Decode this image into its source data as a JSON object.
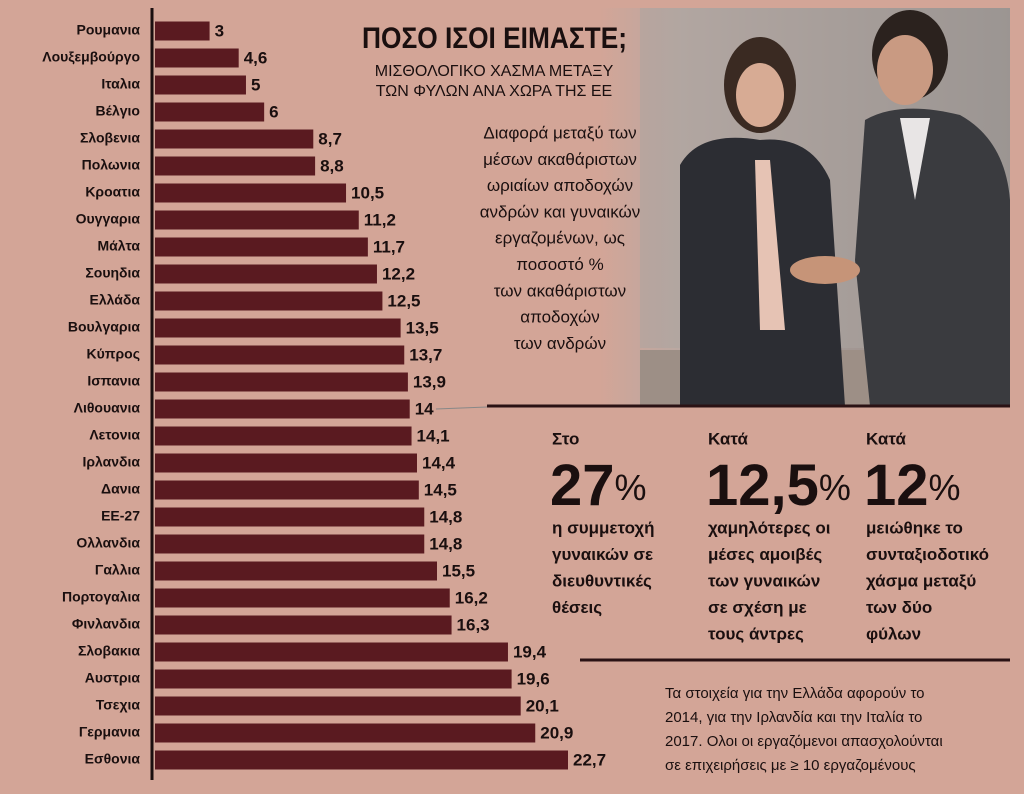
{
  "chart_data": {
    "type": "bar",
    "orientation": "horizontal",
    "categories": [
      "Ρουμανια",
      "Λουξεμβούργο",
      "Ιταλια",
      "Βέλγιο",
      "Σλοβενια",
      "Πολωνια",
      "Κροατια",
      "Ουγγαρια",
      "Μάλτα",
      "Σουηδια",
      "Ελλάδα",
      "Βουλγαρια",
      "Κύπρος",
      "Ισπανια",
      "Λιθουανια",
      "Λετονια",
      "Ιρλανδια",
      "Δανια",
      "ΕΕ-27",
      "Ολλανδια",
      "Γαλλια",
      "Πορτογαλια",
      "Φινλανδια",
      "Σλοβακια",
      "Αυστρια",
      "Τσεχια",
      "Γερμανια",
      "Εσθονια"
    ],
    "values": [
      3,
      4.6,
      5,
      6,
      8.7,
      8.8,
      10.5,
      11.2,
      11.7,
      12.2,
      12.5,
      13.5,
      13.7,
      13.9,
      14,
      14.1,
      14.4,
      14.5,
      14.8,
      14.8,
      15.5,
      16.2,
      16.3,
      19.4,
      19.6,
      20.1,
      20.9,
      22.7
    ],
    "value_labels": [
      "3",
      "4,6",
      "5",
      "6",
      "8,7",
      "8,8",
      "10,5",
      "11,2",
      "11,7",
      "12,2",
      "12,5",
      "13,5",
      "13,7",
      "13,9",
      "14",
      "14,1",
      "14,4",
      "14,5",
      "14,8",
      "14,8",
      "15,5",
      "16,2",
      "16,3",
      "19,4",
      "19,6",
      "20,1",
      "20,9",
      "22,7"
    ],
    "color": "#5a1a20"
  },
  "header": {
    "title": "ΠΟΣΟ ΙΣΟΙ ΕΙΜΑΣΤΕ;",
    "subtitle": [
      "ΜΙΣΘΟΛΟΓΙΚΟ ΧΑΣΜΑ ΜΕΤΑΞΥ",
      "ΤΩΝ ΦΥΛΩΝ ΑΝΑ ΧΩΡΑ ΤΗΣ ΕΕ"
    ],
    "description": [
      "Διαφορά μεταξύ των",
      "μέσων ακαθάριστων",
      "ωριαίων αποδοχών",
      "ανδρών και γυναικών",
      "εργαζομένων, ως",
      "ποσοστό %",
      "των ακαθάριστων",
      "αποδοχών",
      "των ανδρών"
    ]
  },
  "stats": [
    {
      "lead": "Στο",
      "number": "27",
      "unit": "%",
      "text": [
        "η συμμετοχή",
        "γυναικών σε",
        "διευθυντικές",
        "θέσεις"
      ]
    },
    {
      "lead": "Κατά",
      "number": "12,5",
      "unit": "%",
      "text": [
        "χαμηλότερες οι",
        "μέσες αμοιβές",
        "των γυναικών",
        "σε σχέση με",
        "τους άντρες"
      ]
    },
    {
      "lead": "Κατά",
      "number": "12",
      "unit": "%",
      "text": [
        "μειώθηκε το",
        "συνταξιοδοτικό",
        "χάσμα μεταξύ",
        "των δύο",
        "φύλων"
      ]
    }
  ],
  "footnote": [
    "Τα στοιχεία για την Ελλάδα αφορούν το",
    "2014, για την Ιρλανδία και την Ιταλία το",
    "2017. Ολοι οι εργαζόμενοι απασχολούνται",
    "σε επιχειρήσεις με ≥ 10 εργαζομένους"
  ]
}
